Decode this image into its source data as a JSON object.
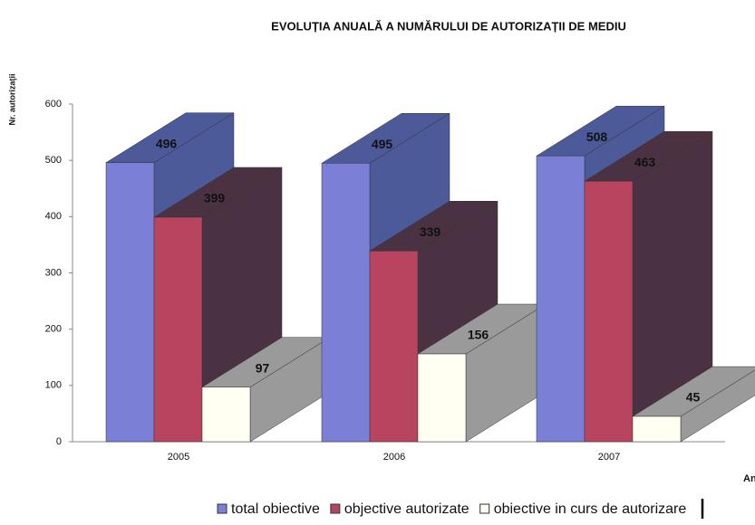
{
  "chart_data": {
    "type": "bar3d",
    "title": "EVOLUȚIA ANUALĂ A NUMĂRULUI DE AUTORIZAȚII DE MEDIU",
    "y_label": "Nr. autorizaţii",
    "x_label": "An",
    "categories": [
      "2005",
      "2006",
      "2007"
    ],
    "series": [
      {
        "name": "total obiective",
        "color": "#7b80d6",
        "side": "#4c5a9a",
        "values": [
          496,
          495,
          508
        ]
      },
      {
        "name": "objective autorizate",
        "color": "#b8445f",
        "side": "#4a3242",
        "values": [
          399,
          339,
          463
        ]
      },
      {
        "name": "obiective in curs de autorizare",
        "color": "#fffff2",
        "side": "#9a9a9a",
        "values": [
          97,
          156,
          45
        ]
      }
    ],
    "ylim": [
      0,
      600
    ],
    "yticks": [
      0,
      100,
      200,
      300,
      400,
      500,
      600
    ]
  }
}
